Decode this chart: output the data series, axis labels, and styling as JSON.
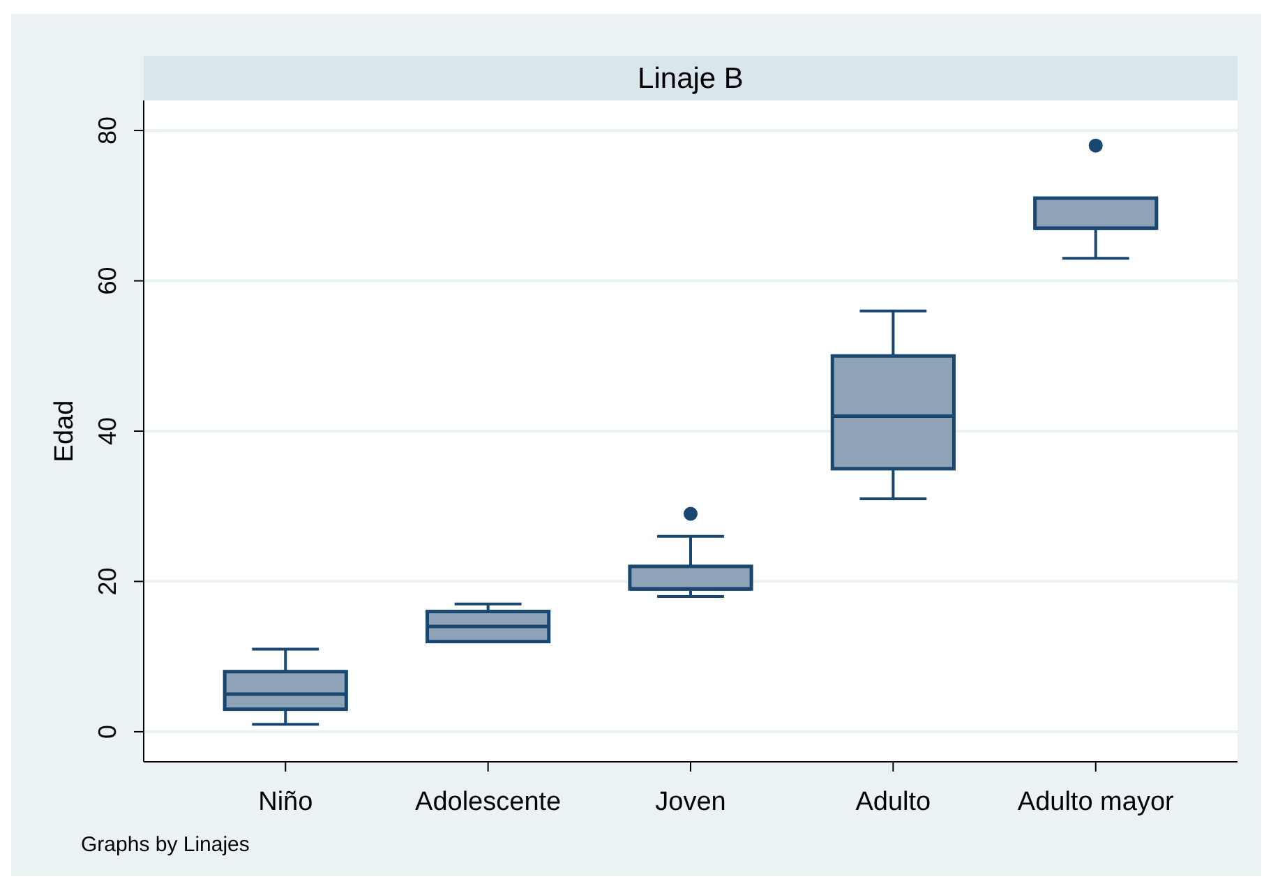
{
  "chart_data": {
    "type": "box",
    "title": "Linaje B",
    "ylabel": "Edad",
    "categories": [
      "Niño",
      "Adolescente",
      "Joven",
      "Adulto",
      "Adulto mayor"
    ],
    "boxes": [
      {
        "low": 1,
        "q1": 3,
        "median": 5,
        "q3": 8,
        "high": 11
      },
      {
        "low": 12,
        "q1": 12,
        "median": 14,
        "q3": 16,
        "high": 17
      },
      {
        "low": 18,
        "q1": 19,
        "median": 19,
        "q3": 22,
        "high": 26,
        "outliers": [
          29
        ]
      },
      {
        "low": 31,
        "q1": 35,
        "median": 42,
        "q3": 50,
        "high": 56
      },
      {
        "low": 63,
        "q1": 67,
        "median": 67,
        "q3": 71,
        "high": 71,
        "outliers": [
          78
        ]
      }
    ],
    "color": "#8fa3b6",
    "ylim": [
      -4,
      84
    ],
    "yticks": [
      0,
      20,
      40,
      60,
      80
    ],
    "grid": "y",
    "annotations": [
      "Graphs by Linajes"
    ]
  }
}
